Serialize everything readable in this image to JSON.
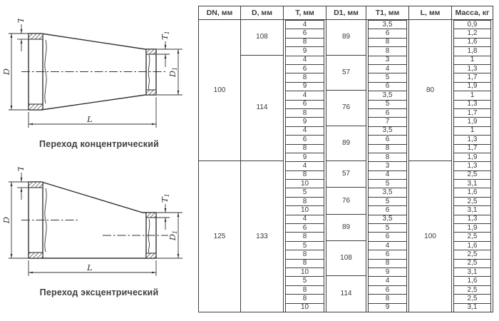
{
  "drawings": {
    "concentric": {
      "caption": "Переход концентрический"
    },
    "eccentric": {
      "caption": "Переход эксцентрический"
    },
    "labels": {
      "t": "T",
      "d": "D",
      "l": "L",
      "t1_main": "T",
      "t1_sub": "1",
      "d1_main": "D",
      "d1_sub": "1"
    },
    "line_color": "#333333"
  },
  "table": {
    "headers": [
      "DN, мм",
      "D, мм",
      "T, мм",
      "D1, мм",
      "T1, мм",
      "L, мм",
      "Масса, кг"
    ],
    "groups": [
      {
        "dn": "100",
        "l": "80",
        "d_groups": [
          {
            "d": "108",
            "d1_groups": [
              {
                "d1": "89",
                "rows": [
                  [
                    "4",
                    "3,5",
                    "0,9"
                  ],
                  [
                    "6",
                    "6",
                    "1,2"
                  ],
                  [
                    "8",
                    "8",
                    "1,6"
                  ],
                  [
                    "9",
                    "8",
                    "1,8"
                  ]
                ]
              }
            ]
          },
          {
            "d": "114",
            "d1_groups": [
              {
                "d1": "57",
                "rows": [
                  [
                    "4",
                    "3",
                    "1"
                  ],
                  [
                    "6",
                    "4",
                    "1,3"
                  ],
                  [
                    "8",
                    "5",
                    "1,7"
                  ],
                  [
                    "9",
                    "6",
                    "1,9"
                  ]
                ]
              },
              {
                "d1": "76",
                "rows": [
                  [
                    "4",
                    "3,5",
                    "1"
                  ],
                  [
                    "6",
                    "5",
                    "1,3"
                  ],
                  [
                    "8",
                    "6",
                    "1,7"
                  ],
                  [
                    "9",
                    "7",
                    "1,9"
                  ]
                ]
              },
              {
                "d1": "89",
                "rows": [
                  [
                    "4",
                    "3,5",
                    "1"
                  ],
                  [
                    "6",
                    "6",
                    "1,3"
                  ],
                  [
                    "8",
                    "8",
                    "1,7"
                  ],
                  [
                    "9",
                    "8",
                    "1,9"
                  ]
                ]
              }
            ]
          }
        ]
      },
      {
        "dn": "125",
        "l": "100",
        "d_groups": [
          {
            "d": "133",
            "d1_groups": [
              {
                "d1": "57",
                "rows": [
                  [
                    "4",
                    "3",
                    "1,3"
                  ],
                  [
                    "8",
                    "4",
                    "2,5"
                  ],
                  [
                    "10",
                    "5",
                    "3,1"
                  ]
                ]
              },
              {
                "d1": "76",
                "rows": [
                  [
                    "5",
                    "3,5",
                    "1,6"
                  ],
                  [
                    "8",
                    "5",
                    "2,5"
                  ],
                  [
                    "10",
                    "6",
                    "3,1"
                  ]
                ]
              },
              {
                "d1": "89",
                "rows": [
                  [
                    "4",
                    "3,5",
                    "1,3"
                  ],
                  [
                    "6",
                    "5",
                    "1,9"
                  ],
                  [
                    "8",
                    "6",
                    "2,5"
                  ]
                ]
              },
              {
                "d1": "108",
                "rows": [
                  [
                    "5",
                    "4",
                    "1,6"
                  ],
                  [
                    "8",
                    "6",
                    "2,5"
                  ],
                  [
                    "8",
                    "8",
                    "2,5"
                  ],
                  [
                    "10",
                    "9",
                    "3,1"
                  ]
                ]
              },
              {
                "d1": "114",
                "rows": [
                  [
                    "5",
                    "4",
                    "1,6"
                  ],
                  [
                    "8",
                    "6",
                    "2,5"
                  ],
                  [
                    "8",
                    "8",
                    "2,5"
                  ],
                  [
                    "10",
                    "9",
                    "3,1"
                  ]
                ]
              }
            ]
          }
        ]
      }
    ]
  }
}
